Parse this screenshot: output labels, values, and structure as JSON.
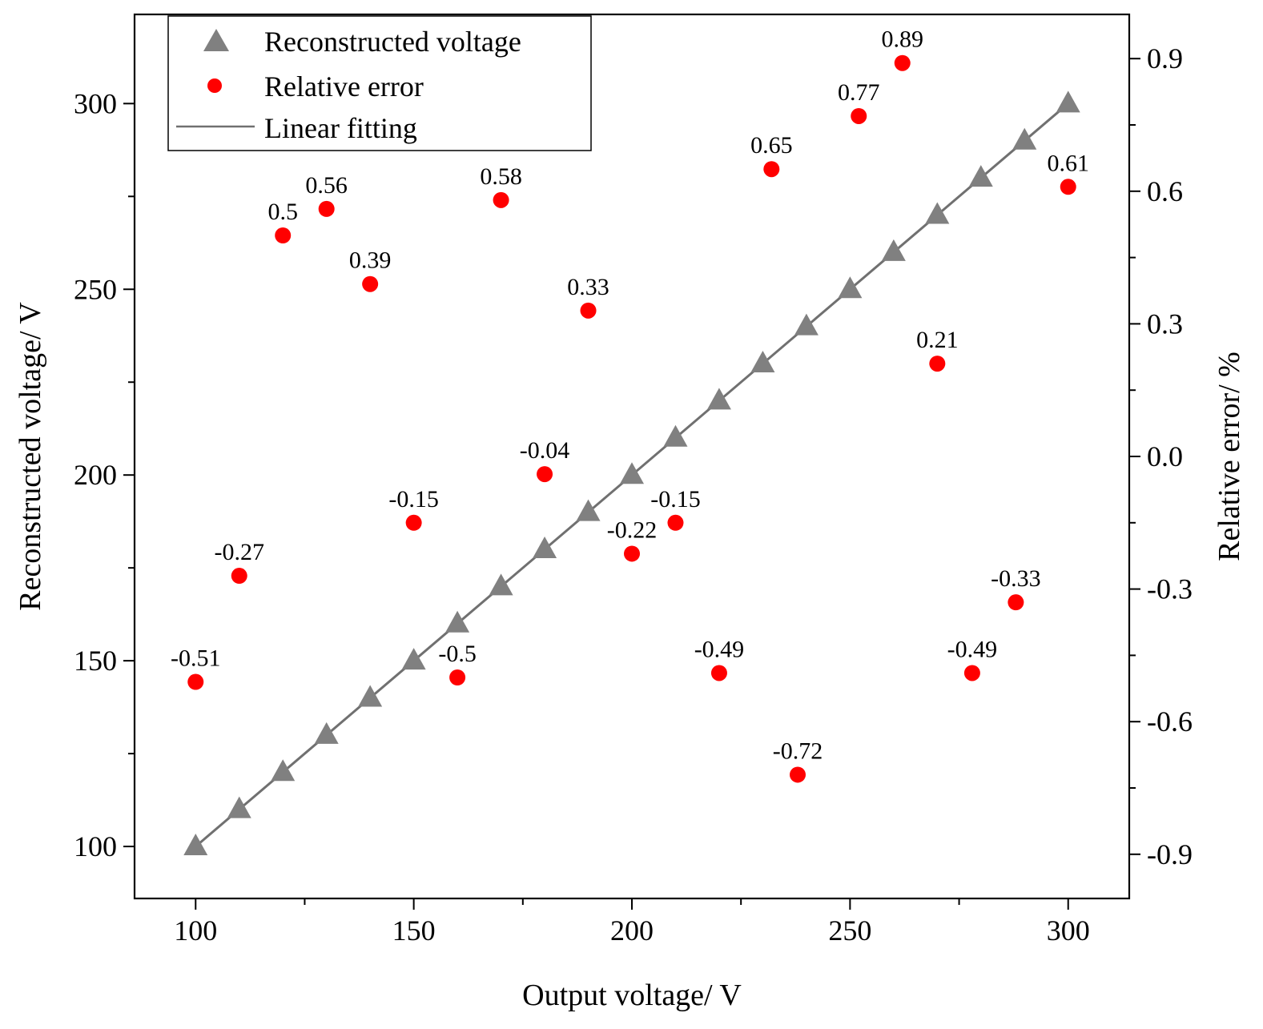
{
  "chart_data": {
    "type": "scatter",
    "xlabel": "Output voltage/ V",
    "ylabel": "Reconstructed voltage/ V",
    "y2label": "Relative error/ %",
    "xlim": [
      86,
      314
    ],
    "ylim": [
      86,
      324
    ],
    "y2lim": [
      -1.0,
      1.0
    ],
    "x_ticks": [
      100,
      150,
      200,
      250,
      300
    ],
    "y_ticks": [
      100,
      150,
      200,
      250,
      300
    ],
    "y2_ticks": [
      -0.9,
      -0.6,
      -0.3,
      0.0,
      0.3,
      0.6,
      0.9
    ],
    "y2_tick_labels": [
      "-0.9",
      "-0.6",
      "-0.3",
      "0.0",
      "0.3",
      "0.6",
      "0.9"
    ],
    "legend": {
      "position": "top-left",
      "entries": [
        "Reconstructed voltage",
        "Relative error",
        "Linear fitting"
      ]
    },
    "colors": {
      "reconstructed": "#808080",
      "error": "#ff0000",
      "fit": "#707070"
    },
    "series": [
      {
        "name": "Reconstructed voltage",
        "axis": "left",
        "marker": "triangle",
        "x": [
          100,
          110,
          120,
          130,
          140,
          150,
          160,
          170,
          180,
          190,
          200,
          210,
          220,
          230,
          240,
          250,
          260,
          270,
          280,
          290,
          300
        ],
        "y": [
          100,
          110,
          120,
          130,
          140,
          150,
          160,
          170,
          180,
          190,
          200,
          210,
          220,
          230,
          240,
          250,
          260,
          270,
          280,
          290,
          300
        ]
      },
      {
        "name": "Relative error",
        "axis": "right",
        "marker": "circle",
        "x": [
          100,
          110,
          120,
          130,
          140,
          150,
          160,
          170,
          180,
          190,
          200,
          210,
          220,
          232,
          238,
          252,
          262,
          270,
          278,
          288,
          300
        ],
        "y": [
          -0.51,
          -0.27,
          0.5,
          0.56,
          0.39,
          -0.15,
          -0.5,
          0.58,
          -0.04,
          0.33,
          -0.22,
          -0.15,
          -0.49,
          0.65,
          -0.72,
          0.77,
          0.89,
          0.21,
          -0.49,
          -0.33,
          0.61
        ],
        "labels": [
          "-0.51",
          "-0.27",
          "0.5",
          "0.56",
          "0.39",
          "-0.15",
          "-0.5",
          "0.58",
          "-0.04",
          "0.33",
          "-0.22",
          "-0.15",
          "-0.49",
          "0.65",
          "-0.72",
          "0.77",
          "0.89",
          "0.21",
          "-0.49",
          "-0.33",
          "0.61"
        ]
      },
      {
        "name": "Linear fitting",
        "axis": "left",
        "marker": "line",
        "x": [
          100,
          300
        ],
        "y": [
          100,
          300
        ]
      }
    ]
  }
}
